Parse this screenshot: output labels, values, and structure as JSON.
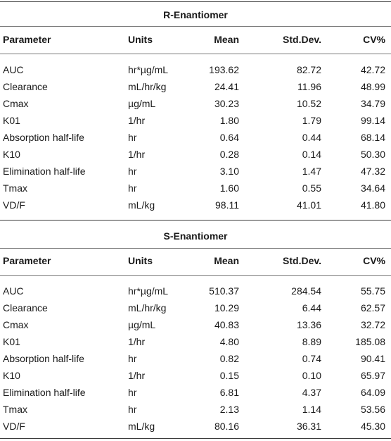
{
  "columns": [
    "Parameter",
    "Units",
    "Mean",
    "Std.Dev.",
    "CV%"
  ],
  "sections": [
    {
      "title": "R-Enantiomer",
      "rows": [
        {
          "parameter": "AUC",
          "units": "hr*µg/mL",
          "mean": "193.62",
          "sd": "82.72",
          "cv": "42.72"
        },
        {
          "parameter": "Clearance",
          "units": "mL/hr/kg",
          "mean": "24.41",
          "sd": "11.96",
          "cv": "48.99"
        },
        {
          "parameter": "Cmax",
          "units": "µg/mL",
          "mean": "30.23",
          "sd": "10.52",
          "cv": "34.79"
        },
        {
          "parameter": "K01",
          "units": "1/hr",
          "mean": "1.80",
          "sd": "1.79",
          "cv": "99.14"
        },
        {
          "parameter": "Absorption half-life",
          "units": "hr",
          "mean": "0.64",
          "sd": "0.44",
          "cv": "68.14"
        },
        {
          "parameter": "K10",
          "units": "1/hr",
          "mean": "0.28",
          "sd": "0.14",
          "cv": "50.30"
        },
        {
          "parameter": "Elimination half-life",
          "units": "hr",
          "mean": "3.10",
          "sd": "1.47",
          "cv": "47.32"
        },
        {
          "parameter": "Tmax",
          "units": "hr",
          "mean": "1.60",
          "sd": "0.55",
          "cv": "34.64"
        },
        {
          "parameter": "VD/F",
          "units": "mL/kg",
          "mean": "98.11",
          "sd": "41.01",
          "cv": "41.80"
        }
      ]
    },
    {
      "title": "S-Enantiomer",
      "rows": [
        {
          "parameter": "AUC",
          "units": "hr*µg/mL",
          "mean": "510.37",
          "sd": "284.54",
          "cv": "55.75"
        },
        {
          "parameter": "Clearance",
          "units": "mL/hr/kg",
          "mean": "10.29",
          "sd": "6.44",
          "cv": "62.57"
        },
        {
          "parameter": "Cmax",
          "units": "µg/mL",
          "mean": "40.83",
          "sd": "13.36",
          "cv": "32.72"
        },
        {
          "parameter": "K01",
          "units": "1/hr",
          "mean": "4.80",
          "sd": "8.89",
          "cv": "185.08"
        },
        {
          "parameter": "Absorption half-life",
          "units": "hr",
          "mean": "0.82",
          "sd": "0.74",
          "cv": "90.41"
        },
        {
          "parameter": "K10",
          "units": "1/hr",
          "mean": "0.15",
          "sd": "0.10",
          "cv": "65.97"
        },
        {
          "parameter": "Elimination half-life",
          "units": "hr",
          "mean": "6.81",
          "sd": "4.37",
          "cv": "64.09"
        },
        {
          "parameter": "Tmax",
          "units": "hr",
          "mean": "2.13",
          "sd": "1.14",
          "cv": "53.56"
        },
        {
          "parameter": "VD/F",
          "units": "mL/kg",
          "mean": "80.16",
          "sd": "36.31",
          "cv": "45.30"
        }
      ]
    }
  ]
}
